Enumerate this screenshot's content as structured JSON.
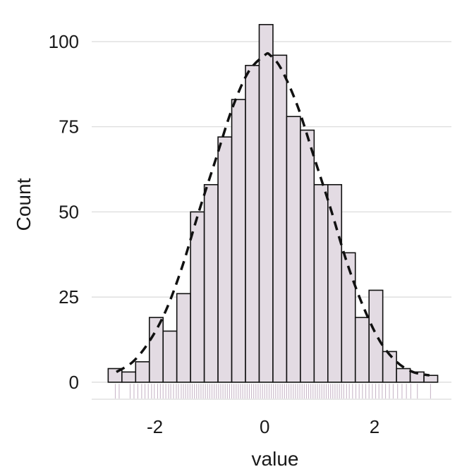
{
  "chart_data": {
    "type": "histogram",
    "xlabel": "value",
    "ylabel": "Count",
    "xlim": [
      -3.15,
      3.4
    ],
    "ylim": [
      -5,
      106
    ],
    "x_ticks": [
      -2,
      0,
      2
    ],
    "y_ticks": [
      0,
      25,
      50,
      75,
      100
    ],
    "grid": "horizontal",
    "colors": {
      "bar_fill": "#e3dbe3",
      "bar_edge": "#111111",
      "rug": "#c9b8c9",
      "density": "#111111",
      "grid": "#d9d9d9"
    },
    "bins": [
      {
        "x0": -2.85,
        "x1": -2.6,
        "count": 4
      },
      {
        "x0": -2.6,
        "x1": -2.35,
        "count": 3
      },
      {
        "x0": -2.35,
        "x1": -2.1,
        "count": 6
      },
      {
        "x0": -2.1,
        "x1": -1.85,
        "count": 19
      },
      {
        "x0": -1.85,
        "x1": -1.6,
        "count": 15
      },
      {
        "x0": -1.6,
        "x1": -1.35,
        "count": 26
      },
      {
        "x0": -1.35,
        "x1": -1.1,
        "count": 50
      },
      {
        "x0": -1.1,
        "x1": -0.85,
        "count": 58
      },
      {
        "x0": -0.85,
        "x1": -0.6,
        "count": 72
      },
      {
        "x0": -0.6,
        "x1": -0.35,
        "count": 83
      },
      {
        "x0": -0.35,
        "x1": -0.1,
        "count": 93
      },
      {
        "x0": -0.1,
        "x1": 0.15,
        "count": 105
      },
      {
        "x0": 0.15,
        "x1": 0.4,
        "count": 96
      },
      {
        "x0": 0.4,
        "x1": 0.65,
        "count": 78
      },
      {
        "x0": 0.65,
        "x1": 0.9,
        "count": 74
      },
      {
        "x0": 0.9,
        "x1": 1.15,
        "count": 58
      },
      {
        "x0": 1.15,
        "x1": 1.4,
        "count": 58
      },
      {
        "x0": 1.4,
        "x1": 1.65,
        "count": 38
      },
      {
        "x0": 1.65,
        "x1": 1.9,
        "count": 19
      },
      {
        "x0": 1.9,
        "x1": 2.15,
        "count": 27
      },
      {
        "x0": 2.15,
        "x1": 2.4,
        "count": 9
      },
      {
        "x0": 2.4,
        "x1": 2.65,
        "count": 4
      },
      {
        "x0": 2.65,
        "x1": 2.9,
        "count": 3
      },
      {
        "x0": 2.9,
        "x1": 3.15,
        "count": 2
      }
    ],
    "density_curve": {
      "style": "dashed",
      "x": [
        -2.7,
        -2.4,
        -2.1,
        -1.8,
        -1.5,
        -1.2,
        -0.9,
        -0.6,
        -0.3,
        0.0,
        0.1,
        0.3,
        0.6,
        0.9,
        1.2,
        1.5,
        1.8,
        2.1,
        2.4,
        2.7,
        3.0
      ],
      "y": [
        3,
        6,
        12,
        21,
        34,
        50,
        65,
        80,
        91,
        96,
        96,
        92,
        81,
        66,
        51,
        35,
        22,
        12,
        6,
        3,
        2
      ]
    },
    "rug": {
      "style": "ticks along x-axis",
      "x": [
        -2.72,
        -2.65,
        -2.45,
        -2.38,
        -2.31,
        -2.24,
        -2.18,
        -2.12,
        -2.06,
        -2.01,
        -1.95,
        -1.9,
        -1.85,
        -1.8,
        -1.75,
        -1.71,
        -1.66,
        -1.61,
        -1.57,
        -1.52,
        -1.48,
        -1.44,
        -1.4,
        -1.36,
        -1.32,
        -1.28,
        -1.24,
        -1.2,
        -1.16,
        -1.12,
        -1.08,
        -1.04,
        -1.0,
        -0.96,
        -0.92,
        -0.88,
        -0.84,
        -0.8,
        -0.76,
        -0.72,
        -0.68,
        -0.64,
        -0.6,
        -0.56,
        -0.52,
        -0.48,
        -0.44,
        -0.4,
        -0.36,
        -0.32,
        -0.28,
        -0.24,
        -0.2,
        -0.16,
        -0.12,
        -0.08,
        -0.04,
        0.0,
        0.04,
        0.08,
        0.12,
        0.16,
        0.2,
        0.24,
        0.28,
        0.32,
        0.36,
        0.4,
        0.44,
        0.48,
        0.52,
        0.56,
        0.6,
        0.64,
        0.68,
        0.72,
        0.76,
        0.8,
        0.84,
        0.88,
        0.92,
        0.96,
        1.0,
        1.04,
        1.08,
        1.12,
        1.16,
        1.2,
        1.24,
        1.28,
        1.32,
        1.36,
        1.4,
        1.44,
        1.49,
        1.54,
        1.6,
        1.66,
        1.72,
        1.78,
        1.84,
        1.9,
        1.96,
        2.02,
        2.08,
        2.14,
        2.2,
        2.27,
        2.34,
        2.42,
        2.5,
        2.58,
        2.66,
        2.78,
        3.02
      ]
    }
  }
}
